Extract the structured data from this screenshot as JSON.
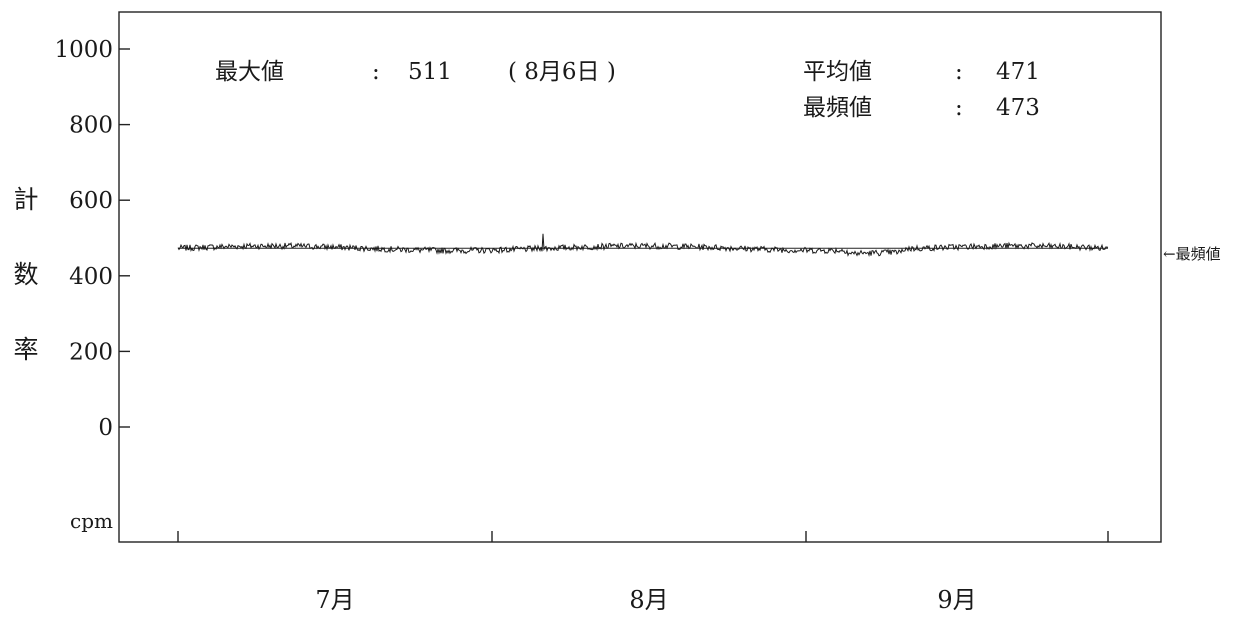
{
  "chart_data": {
    "type": "line",
    "ylabel": "計数率",
    "yunit": "cpm",
    "ylim": [
      -150,
      1100
    ],
    "yticks": [
      0,
      200,
      400,
      600,
      800,
      1000
    ],
    "x_months": [
      "7月",
      "8月",
      "9月"
    ],
    "series": [
      {
        "x_start_day_of_period": 0,
        "values_note_unused": "",
        "baseline": 473,
        "max": 511
      }
    ],
    "stats": {
      "max_label": "最大値",
      "max_value": "511",
      "max_date": "( 8月6日 )",
      "mean_label": "平均値",
      "mean_value": "471",
      "mode_label": "最頻値",
      "mode_value": "473",
      "colon": ":"
    },
    "mode_line_value": 473,
    "mode_marker_label": "←最頻値"
  }
}
